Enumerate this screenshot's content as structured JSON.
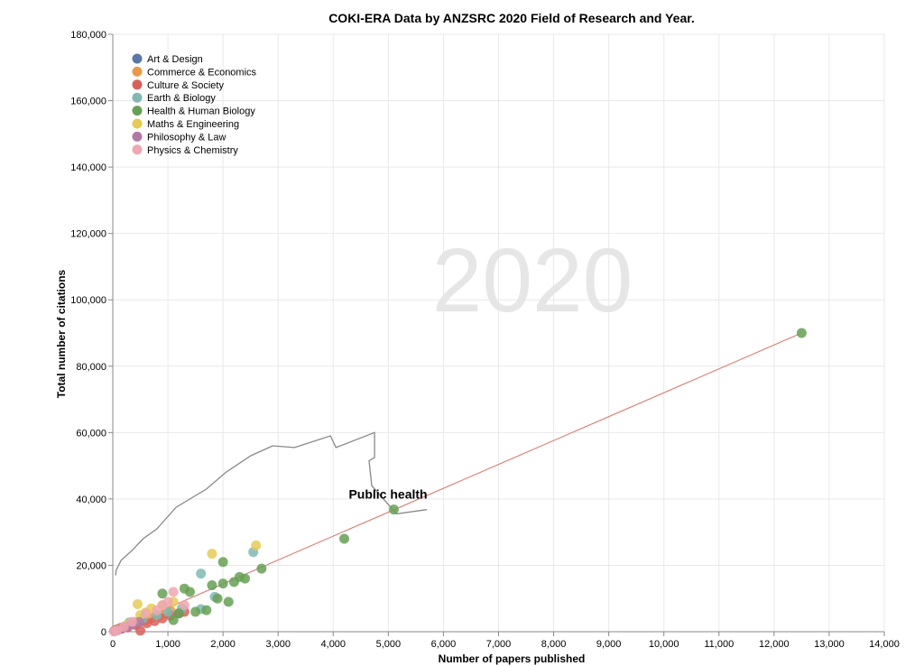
{
  "colors": {
    "trendline": "#d87c73",
    "annotation_path": "#888888",
    "watermark": "#e6e6e6"
  },
  "chart_data": {
    "type": "scatter",
    "title": "COKI-ERA Data by ANZSRC 2020 Field of Research and Year.",
    "xlabel": "Number of papers published",
    "ylabel": "Total number of citations",
    "xlim": [
      0,
      14000
    ],
    "ylim": [
      0,
      180000
    ],
    "x_ticks": [
      "0",
      "1,000",
      "2,000",
      "3,000",
      "4,000",
      "5,000",
      "6,000",
      "7,000",
      "8,000",
      "9,000",
      "10,000",
      "11,000",
      "12,000",
      "13,000",
      "14,000"
    ],
    "y_ticks": [
      "0",
      "20,000",
      "40,000",
      "60,000",
      "80,000",
      "100,000",
      "120,000",
      "140,000",
      "160,000",
      "180,000"
    ],
    "grid": true,
    "legend_position": "top-left",
    "year_label": "2020",
    "annotation": {
      "text": "Public health",
      "point": [
        5100,
        36800
      ]
    },
    "trendline": {
      "from": [
        0,
        0
      ],
      "to": [
        12500,
        90000
      ]
    },
    "annotation_trail": [
      [
        50,
        17000
      ],
      [
        60,
        18500
      ],
      [
        150,
        21500
      ],
      [
        350,
        24500
      ],
      [
        550,
        28000
      ],
      [
        800,
        31000
      ],
      [
        1150,
        37500
      ],
      [
        1700,
        43000
      ],
      [
        2050,
        48000
      ],
      [
        2500,
        53000
      ],
      [
        2900,
        56000
      ],
      [
        3300,
        55500
      ],
      [
        3950,
        59000
      ],
      [
        4050,
        55500
      ],
      [
        4750,
        60000
      ],
      [
        4750,
        52500
      ],
      [
        4650,
        51500
      ],
      [
        4700,
        44000
      ],
      [
        5150,
        35500
      ],
      [
        5700,
        36800
      ]
    ],
    "series": [
      {
        "name": "Art & Design",
        "color": "#5c77a5",
        "points": [
          [
            30,
            300
          ],
          [
            80,
            700
          ],
          [
            150,
            1200
          ],
          [
            260,
            1900
          ],
          [
            390,
            2700
          ],
          [
            520,
            3300
          ]
        ]
      },
      {
        "name": "Commerce & Economics",
        "color": "#e99a48",
        "points": [
          [
            50,
            500
          ],
          [
            120,
            1000
          ],
          [
            230,
            1600
          ],
          [
            340,
            2200
          ],
          [
            450,
            2800
          ],
          [
            600,
            3500
          ],
          [
            700,
            4200
          ],
          [
            850,
            4800
          ],
          [
            950,
            5500
          ],
          [
            1050,
            6300
          ]
        ]
      },
      {
        "name": "Culture & Society",
        "color": "#d8605b",
        "points": [
          [
            60,
            500
          ],
          [
            150,
            900
          ],
          [
            270,
            1300
          ],
          [
            420,
            2000
          ],
          [
            500,
            300
          ],
          [
            620,
            2600
          ],
          [
            760,
            3200
          ],
          [
            900,
            4000
          ],
          [
            1050,
            4800
          ],
          [
            1200,
            5500
          ],
          [
            1300,
            6000
          ]
        ]
      },
      {
        "name": "Earth & Biology",
        "color": "#7fb8b4",
        "points": [
          [
            300,
            2800
          ],
          [
            550,
            4000
          ],
          [
            800,
            5000
          ],
          [
            1000,
            6000
          ],
          [
            1250,
            7000
          ],
          [
            1600,
            6800
          ],
          [
            1850,
            10500
          ],
          [
            2550,
            24000
          ],
          [
            1600,
            17500
          ]
        ]
      },
      {
        "name": "Health & Human Biology",
        "color": "#66a055",
        "points": [
          [
            900,
            11500
          ],
          [
            1100,
            3500
          ],
          [
            1200,
            5500
          ],
          [
            1300,
            13000
          ],
          [
            1400,
            12000
          ],
          [
            1500,
            6000
          ],
          [
            1700,
            6500
          ],
          [
            1800,
            14000
          ],
          [
            1900,
            10000
          ],
          [
            2000,
            21000
          ],
          [
            2000,
            14500
          ],
          [
            2100,
            9000
          ],
          [
            2200,
            15000
          ],
          [
            2300,
            16500
          ],
          [
            2400,
            16000
          ],
          [
            2700,
            19000
          ],
          [
            4200,
            28000
          ],
          [
            5100,
            36800
          ],
          [
            12500,
            90000
          ]
        ]
      },
      {
        "name": "Maths & Engineering",
        "color": "#e5cb55",
        "points": [
          [
            250,
            2000
          ],
          [
            400,
            3000
          ],
          [
            500,
            5000
          ],
          [
            600,
            5800
          ],
          [
            450,
            8300
          ],
          [
            700,
            7000
          ],
          [
            900,
            8000
          ],
          [
            1100,
            9000
          ],
          [
            1800,
            23500
          ],
          [
            2600,
            26000
          ]
        ]
      },
      {
        "name": "Philosophy & Law",
        "color": "#b07aa6",
        "points": [
          [
            40,
            200
          ],
          [
            90,
            500
          ],
          [
            160,
            900
          ],
          [
            250,
            1400
          ],
          [
            350,
            2200
          ],
          [
            480,
            2900
          ]
        ]
      },
      {
        "name": "Physics & Chemistry",
        "color": "#efa7b2",
        "points": [
          [
            20,
            100
          ],
          [
            80,
            400
          ],
          [
            200,
            1500
          ],
          [
            350,
            3000
          ],
          [
            600,
            5500
          ],
          [
            800,
            6500
          ],
          [
            900,
            8000
          ],
          [
            1000,
            9000
          ],
          [
            1100,
            12000
          ],
          [
            1300,
            8000
          ]
        ]
      }
    ]
  }
}
